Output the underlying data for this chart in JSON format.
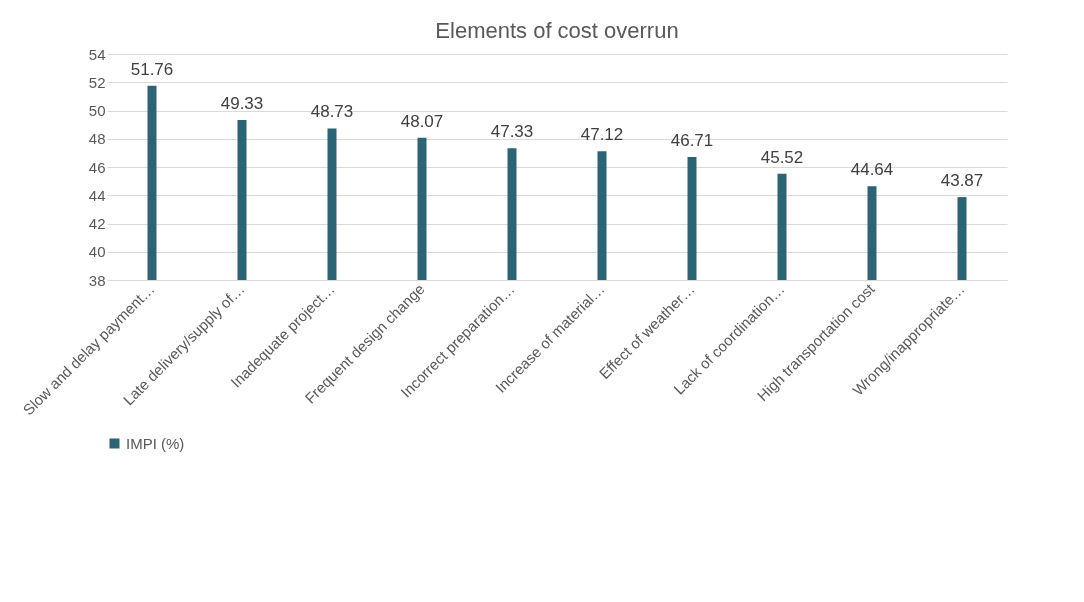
{
  "chart_data": {
    "type": "bar",
    "title": "Elements of cost overrun",
    "categories": [
      "Slow and delay payment…",
      "Late delivery/supply of…",
      "Inadequate project…",
      "Frequent design change",
      "Incorrect preparation…",
      "Increase of material…",
      "Effect of weather…",
      "Lack of coordination…",
      "High transportation cost",
      "Wrong/inappropriate…"
    ],
    "series": [
      {
        "name": "IMPI (%)",
        "color": "#2a6475",
        "values": [
          51.76,
          49.33,
          48.73,
          48.07,
          47.33,
          47.12,
          46.71,
          45.52,
          44.64,
          43.87
        ]
      }
    ],
    "ylim": [
      38,
      54
    ],
    "yticks": [
      38,
      40,
      42,
      44,
      46,
      48,
      50,
      52,
      54
    ],
    "grid": "y",
    "legend": "bottom",
    "data_labels": true
  }
}
